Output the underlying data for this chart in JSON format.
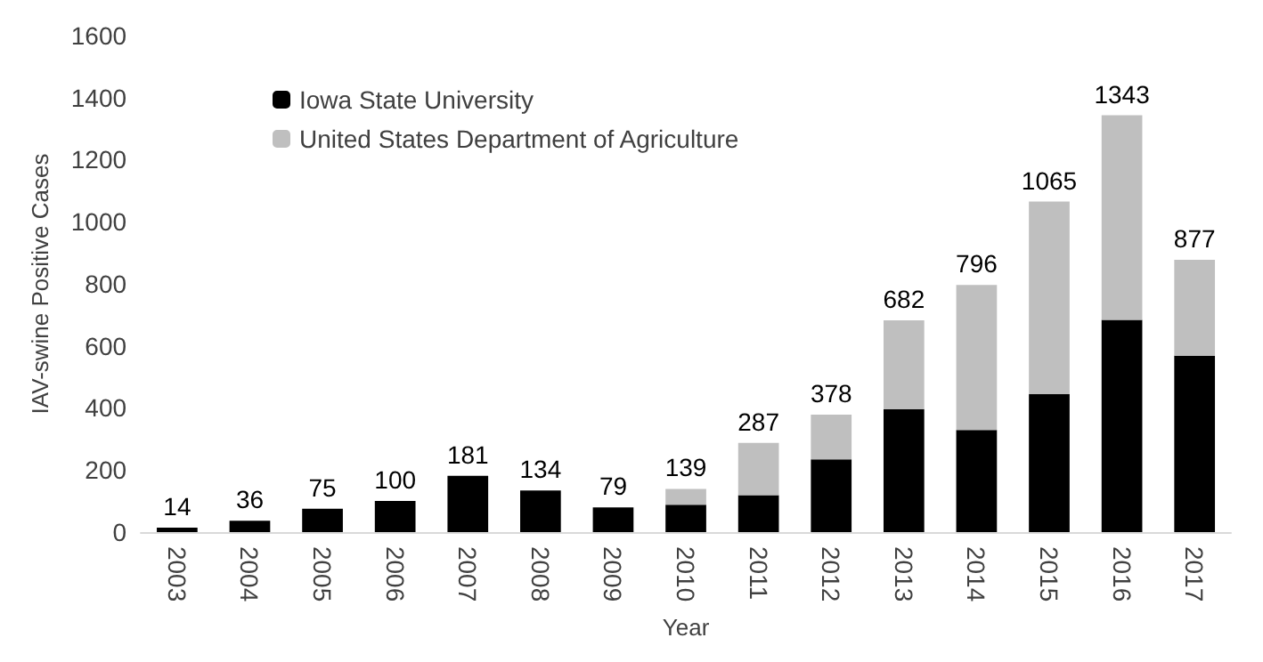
{
  "chart_data": {
    "type": "bar",
    "stacked": true,
    "xlabel": "Year",
    "ylabel": "IAV-swine Positive Cases",
    "categories": [
      "2003",
      "2004",
      "2005",
      "2006",
      "2007",
      "2008",
      "2009",
      "2010",
      "2011",
      "2012",
      "2013",
      "2014",
      "2015",
      "2016",
      "2017"
    ],
    "series": [
      {
        "name": "Iowa State University",
        "color": "#000000",
        "values": [
          14,
          36,
          75,
          100,
          181,
          134,
          79,
          88,
          119,
          234,
          396,
          329,
          444,
          684,
          568
        ]
      },
      {
        "name": "United States Department of Agriculture",
        "color": "#bfbfbf",
        "values": [
          0,
          0,
          0,
          0,
          0,
          0,
          0,
          51,
          168,
          144,
          286,
          467,
          621,
          659,
          309
        ]
      }
    ],
    "totals": [
      "14",
      "36",
      "75",
      "100",
      "181",
      "134",
      "79",
      "139",
      "287",
      "378",
      "682",
      "796",
      "1065",
      "1343",
      "877"
    ],
    "ylim": [
      0,
      1600
    ],
    "yticks": [
      0,
      200,
      400,
      600,
      800,
      1000,
      1200,
      1400,
      1600
    ],
    "grid": false,
    "legend": "top left"
  }
}
